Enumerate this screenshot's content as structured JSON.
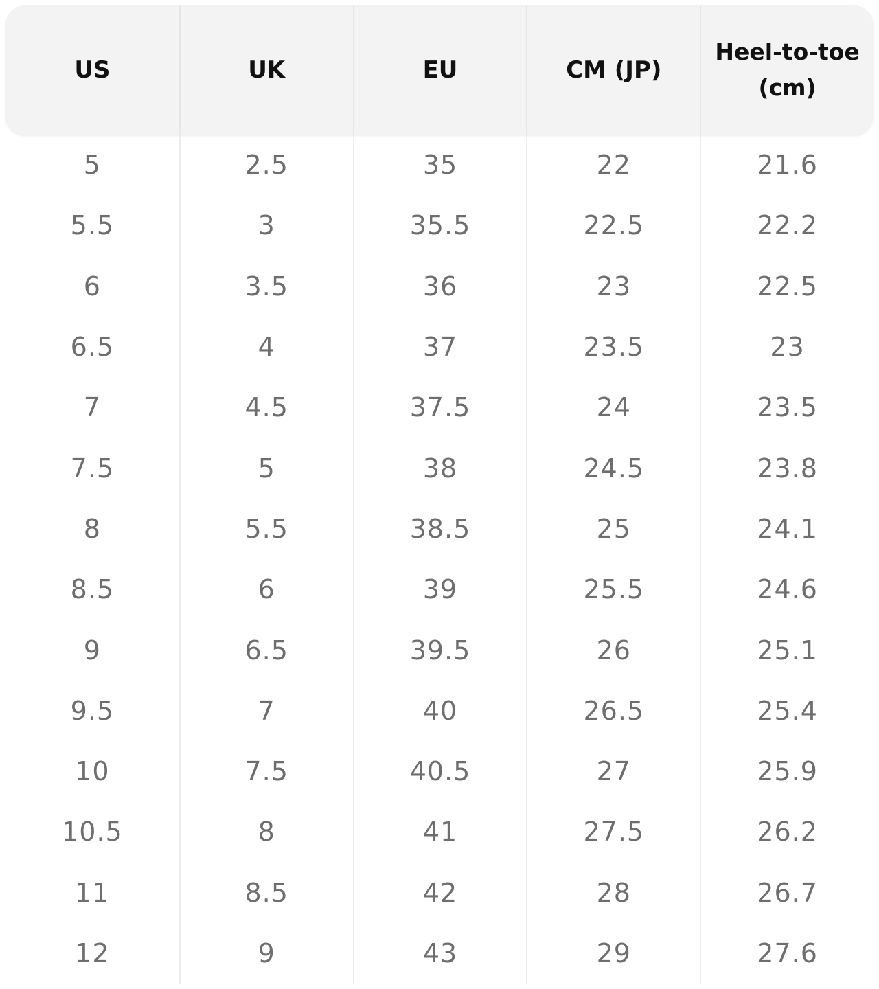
{
  "table": {
    "headers": [
      "US",
      "UK",
      "EU",
      "CM (JP)",
      "Heel-to-toe (cm)"
    ],
    "rows": [
      [
        "5",
        "2.5",
        "35",
        "22",
        "21.6"
      ],
      [
        "5.5",
        "3",
        "35.5",
        "22.5",
        "22.2"
      ],
      [
        "6",
        "3.5",
        "36",
        "23",
        "22.5"
      ],
      [
        "6.5",
        "4",
        "37",
        "23.5",
        "23"
      ],
      [
        "7",
        "4.5",
        "37.5",
        "24",
        "23.5"
      ],
      [
        "7.5",
        "5",
        "38",
        "24.5",
        "23.8"
      ],
      [
        "8",
        "5.5",
        "38.5",
        "25",
        "24.1"
      ],
      [
        "8.5",
        "6",
        "39",
        "25.5",
        "24.6"
      ],
      [
        "9",
        "6.5",
        "39.5",
        "26",
        "25.1"
      ],
      [
        "9.5",
        "7",
        "40",
        "26.5",
        "25.4"
      ],
      [
        "10",
        "7.5",
        "40.5",
        "27",
        "25.9"
      ],
      [
        "10.5",
        "8",
        "41",
        "27.5",
        "26.2"
      ],
      [
        "11",
        "8.5",
        "42",
        "28",
        "26.7"
      ],
      [
        "12",
        "9",
        "43",
        "29",
        "27.6"
      ]
    ]
  },
  "colors": {
    "header_background": "#f3f3f3",
    "header_text": "#111111",
    "cell_text": "#6e6e6e",
    "divider": "#ececec"
  }
}
